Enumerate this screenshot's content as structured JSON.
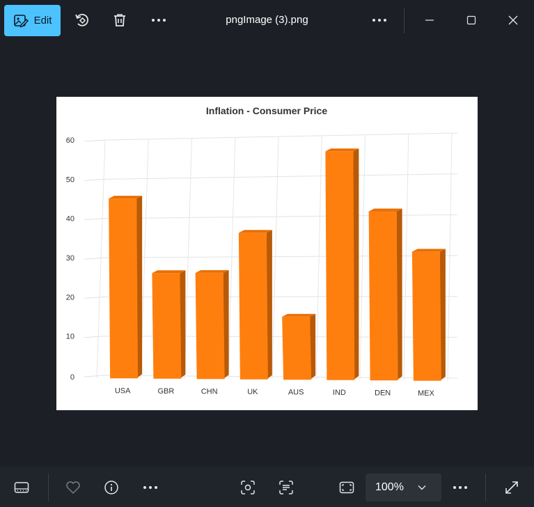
{
  "toolbar": {
    "edit_label": "Edit",
    "file_title": "pngImage (3).png"
  },
  "bottom_bar": {
    "zoom_value": "100%"
  },
  "colors": {
    "bar_front": "#ff7f0e",
    "bar_side": "#b85a07",
    "bar_top": "#e86f05",
    "accent": "#4cc2ff"
  },
  "chart_data": {
    "type": "bar",
    "title": "Inflation - Consumer Price",
    "categories": [
      "USA",
      "GBR",
      "CHN",
      "UK",
      "AUS",
      "IND",
      "DEN",
      "MEX"
    ],
    "values": [
      45,
      26,
      26,
      36,
      15,
      56,
      41,
      31
    ],
    "yticks": [
      0,
      10,
      20,
      30,
      40,
      50,
      60
    ],
    "ylim": [
      0,
      60
    ],
    "grid": true,
    "legend": "none",
    "style": "3d"
  }
}
